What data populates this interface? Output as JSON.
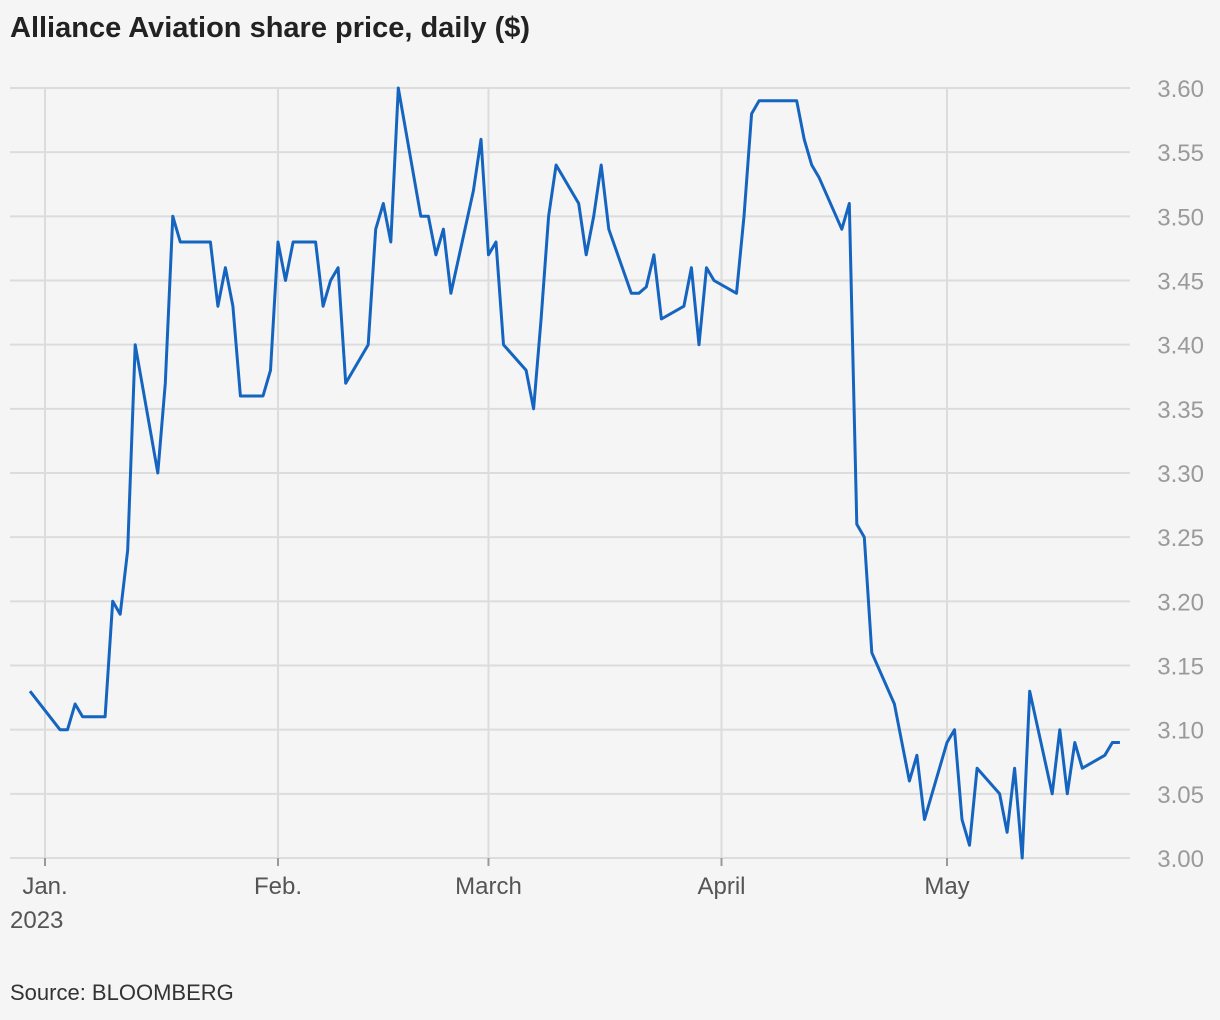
{
  "chart_data": {
    "type": "line",
    "title": "Alliance Aviation share price, daily ($)",
    "source": "Source: BLOOMBERG",
    "xlabel": "",
    "ylabel": "",
    "ylim": [
      3.0,
      3.6
    ],
    "y_ticks": [
      "3.00",
      "3.05",
      "3.10",
      "3.15",
      "3.20",
      "3.25",
      "3.30",
      "3.35",
      "3.40",
      "3.45",
      "3.50",
      "3.55",
      "3.60"
    ],
    "x_ticks": [
      {
        "date": "2023-01-01",
        "label": "Jan.",
        "sublabel": "2023"
      },
      {
        "date": "2023-02-01",
        "label": "Feb.",
        "sublabel": ""
      },
      {
        "date": "2023-03-01",
        "label": "March",
        "sublabel": ""
      },
      {
        "date": "2023-04-01",
        "label": "April",
        "sublabel": ""
      },
      {
        "date": "2023-05-01",
        "label": "May",
        "sublabel": ""
      }
    ],
    "xlim": [
      "2023-01-01",
      "2023-05-24"
    ],
    "grid": true,
    "legend": "none",
    "series": [
      {
        "color": "#1565c0",
        "x": [
          "2022-12-30",
          "2023-01-03",
          "2023-01-04",
          "2023-01-05",
          "2023-01-06",
          "2023-01-09",
          "2023-01-10",
          "2023-01-11",
          "2023-01-12",
          "2023-01-13",
          "2023-01-16",
          "2023-01-17",
          "2023-01-18",
          "2023-01-19",
          "2023-01-20",
          "2023-01-23",
          "2023-01-24",
          "2023-01-25",
          "2023-01-26",
          "2023-01-27",
          "2023-01-30",
          "2023-01-31",
          "2023-02-01",
          "2023-02-02",
          "2023-02-03",
          "2023-02-06",
          "2023-02-07",
          "2023-02-08",
          "2023-02-09",
          "2023-02-10",
          "2023-02-13",
          "2023-02-14",
          "2023-02-15",
          "2023-02-16",
          "2023-02-17",
          "2023-02-20",
          "2023-02-21",
          "2023-02-22",
          "2023-02-23",
          "2023-02-24",
          "2023-02-27",
          "2023-02-28",
          "2023-03-01",
          "2023-03-02",
          "2023-03-03",
          "2023-03-06",
          "2023-03-07",
          "2023-03-08",
          "2023-03-09",
          "2023-03-10",
          "2023-03-13",
          "2023-03-14",
          "2023-03-15",
          "2023-03-16",
          "2023-03-17",
          "2023-03-20",
          "2023-03-21",
          "2023-03-22",
          "2023-03-23",
          "2023-03-24",
          "2023-03-27",
          "2023-03-28",
          "2023-03-29",
          "2023-03-30",
          "2023-03-31",
          "2023-04-03",
          "2023-04-04",
          "2023-04-05",
          "2023-04-06",
          "2023-04-11",
          "2023-04-12",
          "2023-04-13",
          "2023-04-14",
          "2023-04-17",
          "2023-04-18",
          "2023-04-19",
          "2023-04-20",
          "2023-04-21",
          "2023-04-24",
          "2023-04-26",
          "2023-04-27",
          "2023-04-28",
          "2023-05-01",
          "2023-05-02",
          "2023-05-03",
          "2023-05-04",
          "2023-05-05",
          "2023-05-08",
          "2023-05-09",
          "2023-05-10",
          "2023-05-11",
          "2023-05-12",
          "2023-05-15",
          "2023-05-16",
          "2023-05-17",
          "2023-05-18",
          "2023-05-19",
          "2023-05-22",
          "2023-05-23",
          "2023-05-24"
        ],
        "values": [
          3.13,
          3.1,
          3.1,
          3.12,
          3.11,
          3.11,
          3.2,
          3.19,
          3.24,
          3.4,
          3.3,
          3.37,
          3.5,
          3.48,
          3.48,
          3.48,
          3.43,
          3.46,
          3.43,
          3.36,
          3.36,
          3.38,
          3.48,
          3.45,
          3.48,
          3.48,
          3.43,
          3.45,
          3.46,
          3.37,
          3.4,
          3.49,
          3.51,
          3.48,
          3.6,
          3.5,
          3.5,
          3.47,
          3.49,
          3.44,
          3.52,
          3.56,
          3.47,
          3.48,
          3.4,
          3.38,
          3.35,
          3.42,
          3.5,
          3.54,
          3.51,
          3.47,
          3.5,
          3.54,
          3.49,
          3.44,
          3.44,
          3.445,
          3.47,
          3.42,
          3.43,
          3.46,
          3.4,
          3.46,
          3.45,
          3.44,
          3.5,
          3.58,
          3.59,
          3.59,
          3.56,
          3.54,
          3.53,
          3.49,
          3.51,
          3.26,
          3.25,
          3.16,
          3.12,
          3.06,
          3.08,
          3.03,
          3.09,
          3.1,
          3.03,
          3.01,
          3.07,
          3.05,
          3.02,
          3.07,
          3.0,
          3.13,
          3.05,
          3.1,
          3.05,
          3.09,
          3.07,
          3.08,
          3.09,
          3.09
        ]
      }
    ]
  }
}
